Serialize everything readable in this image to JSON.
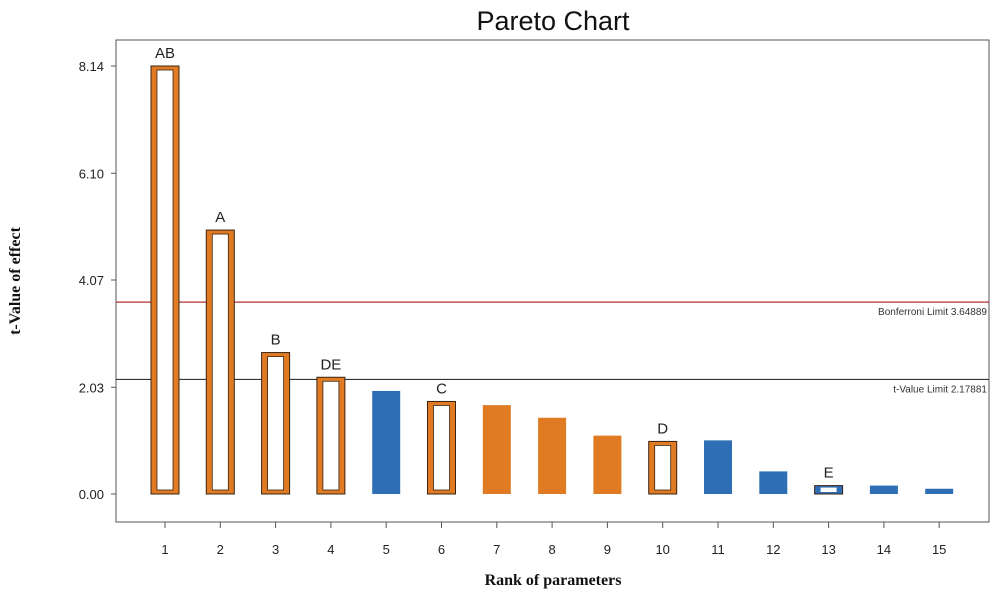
{
  "chart_data": {
    "type": "bar",
    "title": "Pareto Chart",
    "xlabel": "Rank of parameters",
    "ylabel": "t-Value of effect",
    "categories": [
      "1",
      "2",
      "3",
      "4",
      "5",
      "6",
      "7",
      "8",
      "9",
      "10",
      "11",
      "12",
      "13",
      "14",
      "15"
    ],
    "values": [
      8.14,
      5.02,
      2.69,
      2.22,
      1.96,
      1.76,
      1.69,
      1.45,
      1.11,
      1.0,
      1.02,
      0.43,
      0.16,
      0.16,
      0.1
    ],
    "effect_labels": [
      "AB",
      "A",
      "B",
      "DE",
      "",
      "C",
      "",
      "",
      "",
      "D",
      "",
      "",
      "E",
      "",
      ""
    ],
    "bar_styles": [
      "hollow",
      "hollow",
      "hollow",
      "hollow",
      "solid",
      "hollow",
      "solid",
      "solid",
      "solid",
      "hollow",
      "solid",
      "solid",
      "hollow",
      "solid",
      "solid"
    ],
    "bar_colors": [
      "#E07B24",
      "#E07B24",
      "#E07B24",
      "#E07B24",
      "#2E6EB5",
      "#E07B24",
      "#E07B24",
      "#E07B24",
      "#E07B24",
      "#E07B24",
      "#2E6EB5",
      "#2E6EB5",
      "#2E6EB5",
      "#2E6EB5",
      "#2E6EB5"
    ],
    "yticks": [
      "0.00",
      "2.03",
      "4.07",
      "6.10",
      "8.14"
    ],
    "ytick_values": [
      0.0,
      2.03,
      4.07,
      6.1,
      8.14
    ],
    "ylim": [
      -0.5,
      8.6
    ],
    "limits": [
      {
        "label": "Bonferroni Limit 3.64889",
        "value": 3.64889,
        "color": "#B03030"
      },
      {
        "label": "t-Value Limit 2.17881",
        "value": 2.17881,
        "color": "#333333"
      }
    ],
    "grid": false
  }
}
